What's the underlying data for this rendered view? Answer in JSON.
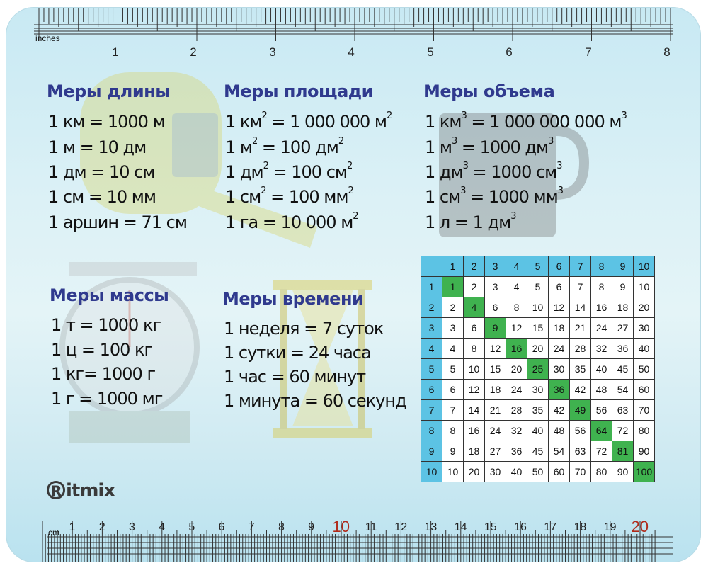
{
  "brand": "Ritmix",
  "brand_initial": "R",
  "brand_rest": "itmix",
  "inch_ruler": {
    "unit_label": "inches",
    "numbers": [
      "1",
      "2",
      "3",
      "4",
      "5",
      "6",
      "7",
      "8"
    ]
  },
  "cm_ruler": {
    "unit_label": "cm",
    "numbers": [
      "1",
      "2",
      "3",
      "4",
      "5",
      "6",
      "7",
      "8",
      "9",
      "10",
      "11",
      "12",
      "13",
      "14",
      "15",
      "16",
      "17",
      "18",
      "19",
      "20"
    ]
  },
  "sections": {
    "length": {
      "title": "Меры длины",
      "lines": [
        "1 км = 1000 м",
        "1 м = 10 дм",
        "1 дм = 10 см",
        "1 см = 10 мм",
        "1 аршин = 71 см"
      ]
    },
    "area": {
      "title": "Меры площади",
      "lines": [
        {
          "a": "1 км",
          "sa": "2",
          "b": " = 1 000 000 м",
          "sb": "2"
        },
        {
          "a": "1 м",
          "sa": "2",
          "b": " = 100 дм",
          "sb": "2"
        },
        {
          "a": "1 дм",
          "sa": "2",
          "b": " = 100 см",
          "sb": "2"
        },
        {
          "a": "1 см",
          "sa": "2",
          "b": " = 100 мм",
          "sb": "2"
        },
        {
          "a": "1 га = 10 000 м",
          "sa": "2",
          "b": "",
          "sb": ""
        }
      ]
    },
    "volume": {
      "title": "Меры объема",
      "lines": [
        {
          "a": "1 км",
          "sa": "3",
          "b": " = 1 000 000 000 м",
          "sb": "3"
        },
        {
          "a": "1 м",
          "sa": "3",
          "b": " = 1000 дм",
          "sb": "3"
        },
        {
          "a": "1 дм",
          "sa": "3",
          "b": " = 1000 см",
          "sb": "3"
        },
        {
          "a": "1 см",
          "sa": "3",
          "b": " = 1000 мм",
          "sb": "3"
        },
        {
          "a": "1 л = 1 дм",
          "sa": "3",
          "b": "",
          "sb": ""
        }
      ]
    },
    "mass": {
      "title": "Меры массы",
      "lines": [
        "1 т = 1000 кг",
        "1 ц = 100 кг",
        "1 кг= 1000 г",
        "1 г = 1000 мг"
      ]
    },
    "time": {
      "title": "Меры времени",
      "lines": [
        "1 неделя = 7 суток",
        "1 сутки = 24 часа",
        "1 час = 60 минут",
        "1 минута = 60 секунд"
      ]
    }
  },
  "multiplication_table": {
    "headers": [
      "1",
      "2",
      "3",
      "4",
      "5",
      "6",
      "7",
      "8",
      "9",
      "10"
    ],
    "rows": [
      [
        "1",
        "2",
        "3",
        "4",
        "5",
        "6",
        "7",
        "8",
        "9",
        "10"
      ],
      [
        "2",
        "4",
        "6",
        "8",
        "10",
        "12",
        "14",
        "16",
        "18",
        "20"
      ],
      [
        "3",
        "6",
        "9",
        "12",
        "15",
        "18",
        "21",
        "24",
        "27",
        "30"
      ],
      [
        "4",
        "8",
        "12",
        "16",
        "20",
        "24",
        "28",
        "32",
        "36",
        "40"
      ],
      [
        "5",
        "10",
        "15",
        "20",
        "25",
        "30",
        "35",
        "40",
        "45",
        "50"
      ],
      [
        "6",
        "12",
        "18",
        "24",
        "30",
        "36",
        "42",
        "48",
        "54",
        "60"
      ],
      [
        "7",
        "14",
        "21",
        "28",
        "35",
        "42",
        "49",
        "56",
        "63",
        "70"
      ],
      [
        "8",
        "16",
        "24",
        "32",
        "40",
        "48",
        "56",
        "64",
        "72",
        "80"
      ],
      [
        "9",
        "18",
        "27",
        "36",
        "45",
        "54",
        "63",
        "72",
        "81",
        "90"
      ],
      [
        "10",
        "20",
        "30",
        "40",
        "50",
        "60",
        "70",
        "80",
        "90",
        "100"
      ]
    ],
    "header_color": "#5cc3e4",
    "diagonal_color": "#3fb24f"
  },
  "colors": {
    "heading": "#303a8e",
    "accent_ruler_numbers": "#b02a1a"
  }
}
